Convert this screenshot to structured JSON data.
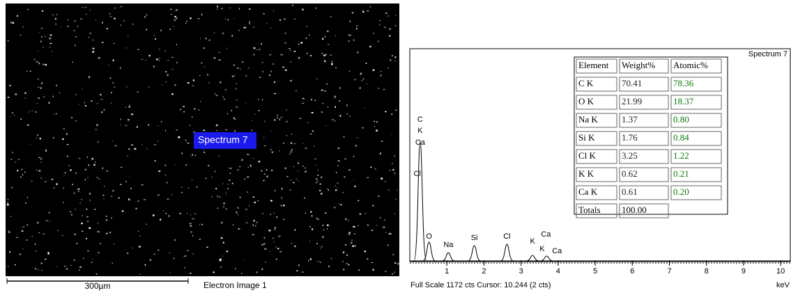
{
  "image": {
    "label": "Spectrum 7",
    "scale_bar": "300µm",
    "caption": "Electron Image 1"
  },
  "spectrum": {
    "title": "Spectrum 7",
    "unit": "keV",
    "footer": "Full Scale 1172 cts Cursor: 10.244  (2 cts)",
    "xlim": [
      0,
      10.26
    ],
    "ylim": [
      0,
      1172
    ],
    "xticks": [
      1,
      2,
      3,
      4,
      5,
      6,
      7,
      8,
      9,
      10
    ],
    "peaks": {
      "x": [
        0.28,
        0.52,
        1.04,
        1.74,
        2.62,
        3.31,
        3.69
      ],
      "height": [
        665,
        105,
        46,
        85,
        93,
        31,
        27
      ]
    },
    "peak_labels": [
      {
        "text": "C",
        "x": 0.28
      },
      {
        "text": "K",
        "x": 0.28
      },
      {
        "text": "Ca",
        "x": 0.28
      },
      {
        "text": "Cl",
        "x": 0.2
      },
      {
        "text": "O",
        "x": 0.52
      },
      {
        "text": "Na",
        "x": 1.04
      },
      {
        "text": "Si",
        "x": 1.74
      },
      {
        "text": "Cl",
        "x": 2.62
      },
      {
        "text": "K",
        "x": 3.31
      },
      {
        "text": "Ca",
        "x": 3.67
      },
      {
        "text": "K",
        "x": 3.57
      },
      {
        "text": "Ca",
        "x": 3.97
      }
    ]
  },
  "table": {
    "header": [
      "Element",
      "Weight%",
      "Atomic%"
    ],
    "rows": [
      [
        "C K",
        "70.41",
        "78.36"
      ],
      [
        "O K",
        "21.99",
        "18.37"
      ],
      [
        "Na K",
        "1.37",
        "0.80"
      ],
      [
        "Si K",
        "1.76",
        "0.84"
      ],
      [
        "Cl K",
        "3.25",
        "1.22"
      ],
      [
        "K K",
        "0.62",
        "0.21"
      ],
      [
        "Ca K",
        "0.61",
        "0.20"
      ]
    ],
    "totals": [
      "Totals",
      "100.00"
    ]
  }
}
